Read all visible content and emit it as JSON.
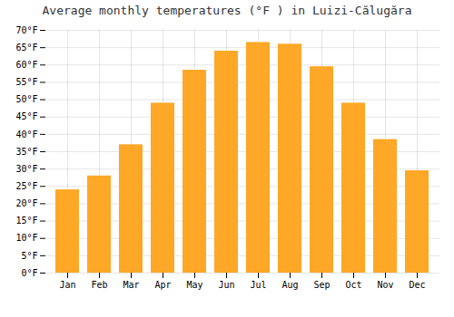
{
  "chart_data": {
    "type": "bar",
    "title": "Average monthly temperatures (°F ) in Luizi-Călugăra",
    "categories": [
      "Jan",
      "Feb",
      "Mar",
      "Apr",
      "May",
      "Jun",
      "Jul",
      "Aug",
      "Sep",
      "Oct",
      "Nov",
      "Dec"
    ],
    "values": [
      24,
      28,
      37,
      49,
      58.5,
      64,
      66.5,
      66,
      59.5,
      49,
      38.5,
      29.5
    ],
    "color": "#FFA726",
    "ylim": [
      0,
      70
    ],
    "yticks": [
      {
        "value": 0,
        "label": "0°F"
      },
      {
        "value": 5,
        "label": "5°F"
      },
      {
        "value": 10,
        "label": "10°F"
      },
      {
        "value": 15,
        "label": "15°F"
      },
      {
        "value": 20,
        "label": "20°F"
      },
      {
        "value": 25,
        "label": "25°F"
      },
      {
        "value": 30,
        "label": "30°F"
      },
      {
        "value": 35,
        "label": "35°F"
      },
      {
        "value": 40,
        "label": "40°F"
      },
      {
        "value": 45,
        "label": "45°F"
      },
      {
        "value": 50,
        "label": "50°F"
      },
      {
        "value": 55,
        "label": "55°F"
      },
      {
        "value": 60,
        "label": "60°F"
      },
      {
        "value": 65,
        "label": "65°F"
      },
      {
        "value": 70,
        "label": "70°F"
      }
    ],
    "grid": true
  }
}
